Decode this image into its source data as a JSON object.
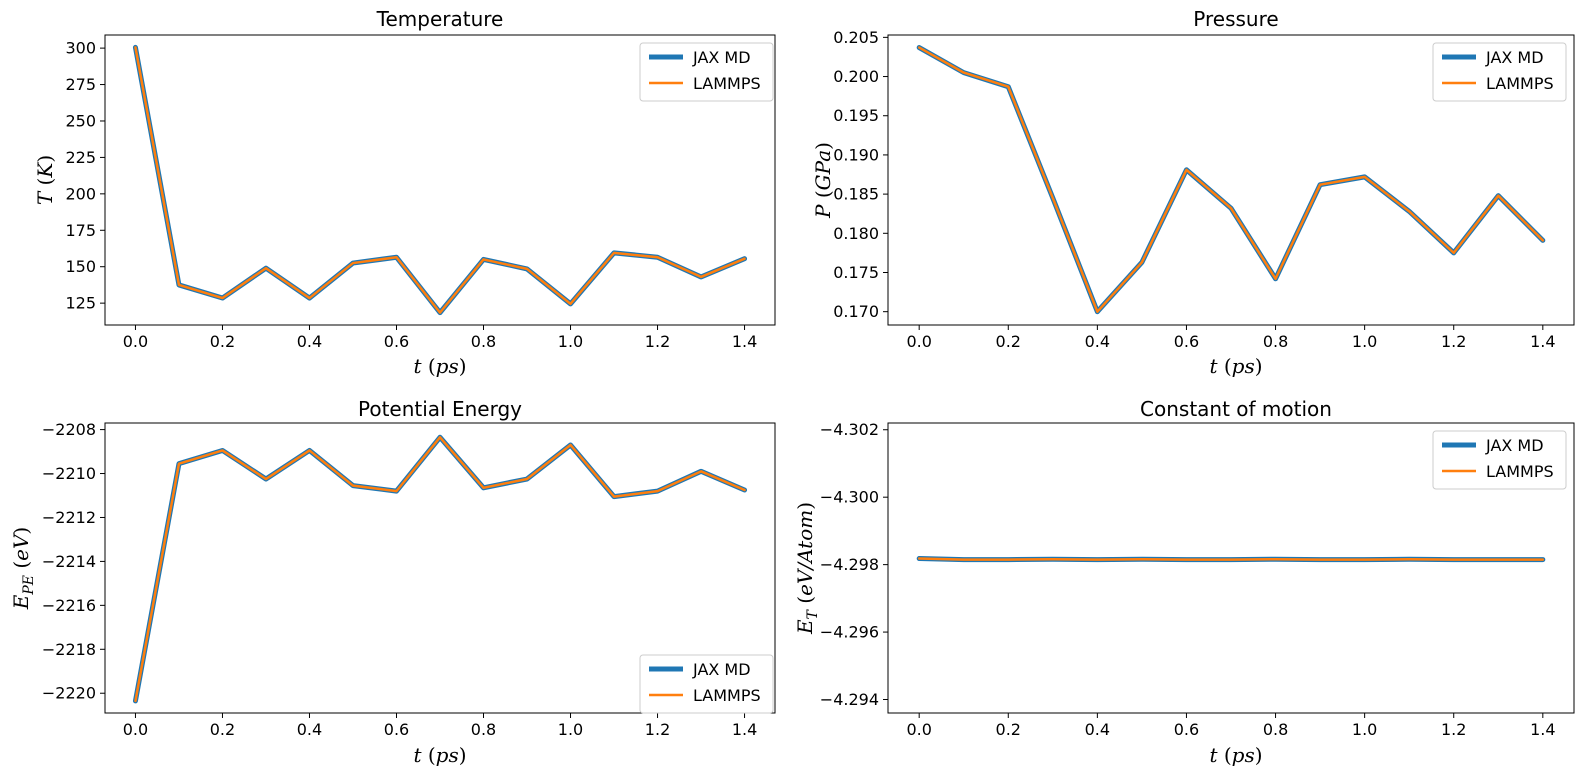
{
  "colors": {
    "jax": "#1f77b4",
    "lammps": "#ff7f0e"
  },
  "chart_data": [
    {
      "type": "line",
      "title": "Temperature",
      "xlabel": "t (ps)",
      "ylabel": "T (K)",
      "x": [
        0.0,
        0.1,
        0.2,
        0.3,
        0.4,
        0.5,
        0.6,
        0.7,
        0.8,
        0.9,
        1.0,
        1.1,
        1.2,
        1.3,
        1.4
      ],
      "xlim": [
        -0.07,
        1.47
      ],
      "ylim": [
        110,
        309
      ],
      "xticks": [
        "0.0",
        "0.2",
        "0.4",
        "0.6",
        "0.8",
        "1.0",
        "1.2",
        "1.4"
      ],
      "yticks": [
        "125",
        "150",
        "175",
        "200",
        "225",
        "250",
        "275",
        "300"
      ],
      "legend": "top-right",
      "series": [
        {
          "name": "JAX MD",
          "values": [
            300.5,
            137.5,
            128.5,
            149.0,
            128.5,
            152.5,
            156.5,
            118.5,
            155.0,
            148.5,
            124.5,
            159.5,
            156.5,
            143.0,
            155.5
          ]
        },
        {
          "name": "LAMMPS",
          "values": [
            300.5,
            137.5,
            128.5,
            149.0,
            128.5,
            152.5,
            156.5,
            118.5,
            155.0,
            148.5,
            124.5,
            159.5,
            156.5,
            143.0,
            155.5
          ]
        }
      ]
    },
    {
      "type": "line",
      "title": "Pressure",
      "xlabel": "t (ps)",
      "ylabel": "P (GPa)",
      "x": [
        0.0,
        0.1,
        0.2,
        0.3,
        0.4,
        0.5,
        0.6,
        0.7,
        0.8,
        0.9,
        1.0,
        1.1,
        1.2,
        1.3,
        1.4
      ],
      "xlim": [
        -0.07,
        1.47
      ],
      "ylim": [
        0.1683,
        0.2053
      ],
      "xticks": [
        "0.0",
        "0.2",
        "0.4",
        "0.6",
        "0.8",
        "1.0",
        "1.2",
        "1.4"
      ],
      "yticks": [
        "0.170",
        "0.175",
        "0.180",
        "0.185",
        "0.190",
        "0.195",
        "0.200",
        "0.205"
      ],
      "legend": "top-right",
      "series": [
        {
          "name": "JAX MD",
          "values": [
            0.2037,
            0.2005,
            0.1987,
            0.1845,
            0.17,
            0.1763,
            0.1881,
            0.1832,
            0.1742,
            0.1862,
            0.1872,
            0.1828,
            0.1775,
            0.1848,
            0.1791
          ]
        },
        {
          "name": "LAMMPS",
          "values": [
            0.2037,
            0.2005,
            0.1987,
            0.1845,
            0.17,
            0.1763,
            0.1881,
            0.1832,
            0.1742,
            0.1862,
            0.1872,
            0.1828,
            0.1775,
            0.1848,
            0.1791
          ]
        }
      ]
    },
    {
      "type": "line",
      "title": "Potential Energy",
      "xlabel": "t (ps)",
      "ylabel": "E_PE (eV)",
      "x": [
        0.0,
        0.1,
        0.2,
        0.3,
        0.4,
        0.5,
        0.6,
        0.7,
        0.8,
        0.9,
        1.0,
        1.1,
        1.2,
        1.3,
        1.4
      ],
      "xlim": [
        -0.07,
        1.47
      ],
      "ylim": [
        -2220.9,
        -2207.7
      ],
      "xticks": [
        "0.0",
        "0.2",
        "0.4",
        "0.6",
        "0.8",
        "1.0",
        "1.2",
        "1.4"
      ],
      "yticks": [
        "−2220",
        "−2218",
        "−2216",
        "−2214",
        "−2212",
        "−2210",
        "−2208"
      ],
      "legend": "bottom-right",
      "series": [
        {
          "name": "JAX MD",
          "values": [
            -2220.35,
            -2209.55,
            -2208.95,
            -2210.25,
            -2208.95,
            -2210.55,
            -2210.8,
            -2208.35,
            -2210.65,
            -2210.25,
            -2208.7,
            -2211.05,
            -2210.8,
            -2209.9,
            -2210.75
          ]
        },
        {
          "name": "LAMMPS",
          "values": [
            -2220.35,
            -2209.55,
            -2208.95,
            -2210.25,
            -2208.95,
            -2210.55,
            -2210.8,
            -2208.35,
            -2210.65,
            -2210.25,
            -2208.7,
            -2211.05,
            -2210.8,
            -2209.9,
            -2210.75
          ]
        }
      ]
    },
    {
      "type": "line",
      "title": "Constant of motion",
      "xlabel": "t (ps)",
      "ylabel": "E_T (eV/Atom)",
      "x": [
        0.0,
        0.1,
        0.2,
        0.3,
        0.4,
        0.5,
        0.6,
        0.7,
        0.8,
        0.9,
        1.0,
        1.1,
        1.2,
        1.3,
        1.4
      ],
      "xlim": [
        -0.07,
        1.47
      ],
      "ylim": [
        -4.3022,
        -4.2936
      ],
      "y_inverted": true,
      "xticks": [
        "0.0",
        "0.2",
        "0.4",
        "0.6",
        "0.8",
        "1.0",
        "1.2",
        "1.4"
      ],
      "yticks": [
        "−4.302",
        "−4.300",
        "−4.298",
        "−4.296",
        "−4.294"
      ],
      "legend": "top-right",
      "series": [
        {
          "name": "JAX MD",
          "values": [
            -4.29818,
            -4.29815,
            -4.29815,
            -4.29816,
            -4.29815,
            -4.29816,
            -4.29815,
            -4.29815,
            -4.29816,
            -4.29815,
            -4.29815,
            -4.29816,
            -4.29815,
            -4.29815,
            -4.29815
          ]
        },
        {
          "name": "LAMMPS",
          "values": [
            -4.29818,
            -4.29815,
            -4.29815,
            -4.29816,
            -4.29815,
            -4.29816,
            -4.29815,
            -4.29815,
            -4.29816,
            -4.29815,
            -4.29815,
            -4.29816,
            -4.29815,
            -4.29815,
            -4.29815
          ]
        }
      ]
    }
  ]
}
